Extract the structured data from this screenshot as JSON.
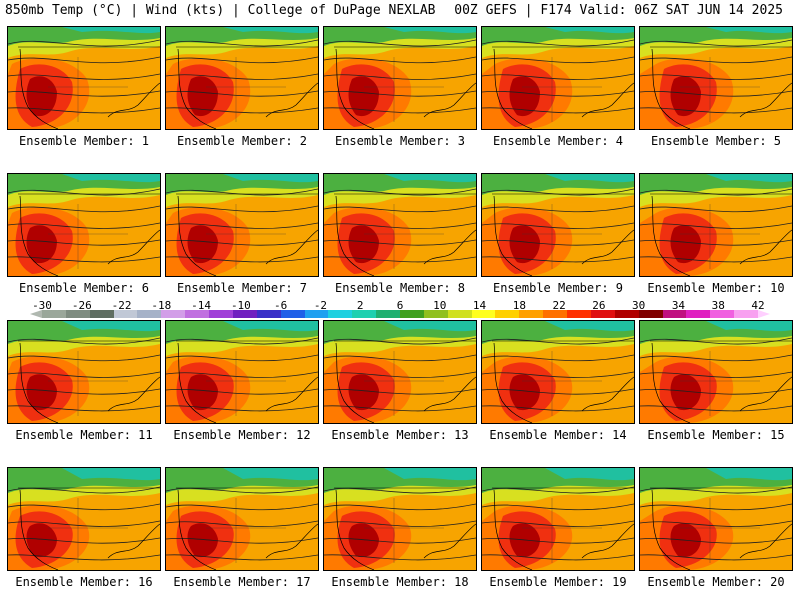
{
  "header": {
    "left": "850mb Temp (°C) | Wind (kts) | College of DuPage NEXLAB",
    "right": "00Z GEFS | F174 Valid: 06Z SAT JUN 14 2025"
  },
  "panel_label_prefix": "Ensemble Member: ",
  "members": [
    {
      "label": "Ensemble Member: 1"
    },
    {
      "label": "Ensemble Member: 2"
    },
    {
      "label": "Ensemble Member: 3"
    },
    {
      "label": "Ensemble Member: 4"
    },
    {
      "label": "Ensemble Member: 5"
    },
    {
      "label": "Ensemble Member: 6"
    },
    {
      "label": "Ensemble Member: 7"
    },
    {
      "label": "Ensemble Member: 8"
    },
    {
      "label": "Ensemble Member: 9"
    },
    {
      "label": "Ensemble Member: 10"
    },
    {
      "label": "Ensemble Member: 11"
    },
    {
      "label": "Ensemble Member: 12"
    },
    {
      "label": "Ensemble Member: 13"
    },
    {
      "label": "Ensemble Member: 14"
    },
    {
      "label": "Ensemble Member: 15"
    },
    {
      "label": "Ensemble Member: 16"
    },
    {
      "label": "Ensemble Member: 17"
    },
    {
      "label": "Ensemble Member: 18"
    },
    {
      "label": "Ensemble Member: 19"
    },
    {
      "label": "Ensemble Member: 20"
    }
  ],
  "colorbar": {
    "labels": [
      "-30",
      "-26",
      "-22",
      "-18",
      "-14",
      "-10",
      "-6",
      "-2",
      "2",
      "6",
      "10",
      "14",
      "18",
      "22",
      "26",
      "30",
      "34",
      "38",
      "42"
    ],
    "colors": [
      "#9aa79a",
      "#7e8c80",
      "#5f6e62",
      "#c0c8d6",
      "#a5b2c8",
      "#d29ee8",
      "#c070e0",
      "#a040d8",
      "#7020c0",
      "#3a30c8",
      "#2060e8",
      "#20a0f0",
      "#20d0e0",
      "#20d0b0",
      "#20b070",
      "#40a020",
      "#90c020",
      "#d0e020",
      "#ffff20",
      "#ffd000",
      "#ffa000",
      "#ff7000",
      "#ff3000",
      "#e01010",
      "#b00000",
      "#800000",
      "#c01080",
      "#e020c0",
      "#f060e0",
      "#f8a0f0"
    ],
    "left_arrow_color": "#b0b8b0",
    "right_arrow_color": "#ffd0ff"
  }
}
